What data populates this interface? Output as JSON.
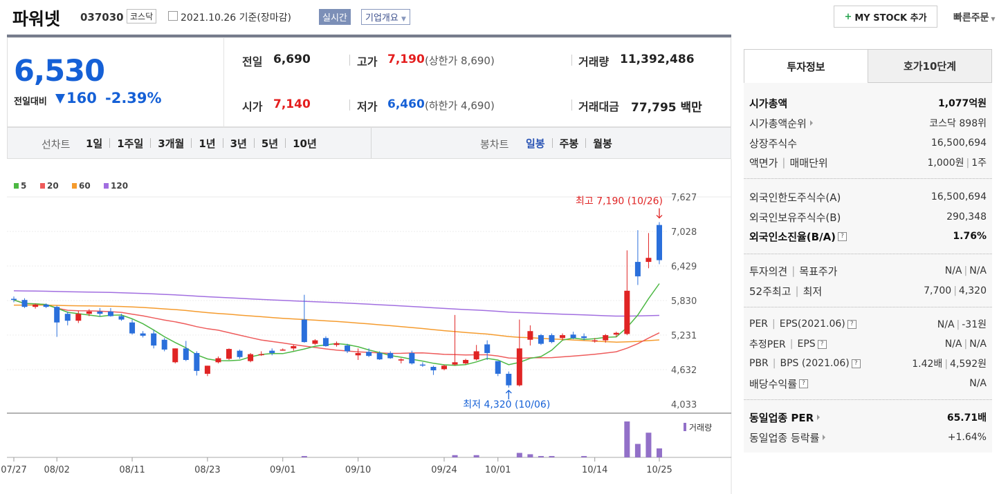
{
  "header": {
    "title": "파워넷",
    "code": "037030",
    "market": "코스닥",
    "date": "2021.10.26 기준(장마감)",
    "realtime": "실시간",
    "overview": "기업개요",
    "mystock": "MY STOCK 추가",
    "quick_order": "빠른주문"
  },
  "quote": {
    "price": "6,530",
    "change_label": "전일대비",
    "change_value": "160",
    "change_pct": "-2.39%",
    "prev_label": "전일",
    "prev": "6,690",
    "high_label": "고가",
    "high": "7,190",
    "upper_limit": "(상한가 8,690)",
    "volume_label": "거래량",
    "volume": "11,392,486",
    "open_label": "시가",
    "open": "7,140",
    "low_label": "저가",
    "low": "6,460",
    "lower_limit": "(하한가 4,690)",
    "amount_label": "거래대금",
    "amount": "77,795 백만"
  },
  "nav": {
    "line_label": "선차트",
    "line_periods": [
      "1일",
      "1주일",
      "3개월",
      "1년",
      "3년",
      "5년",
      "10년"
    ],
    "candle_label": "봉차트",
    "candle_periods": [
      "일봉",
      "주봉",
      "월봉"
    ]
  },
  "legend": [
    "5",
    "20",
    "60",
    "120"
  ],
  "chart_data": {
    "type": "candlestick",
    "y_ticks": [
      "7,627",
      "7,028",
      "6,429",
      "5,830",
      "5,231",
      "4,632",
      "4,033"
    ],
    "x_ticks": [
      "07/27",
      "08/02",
      "08/11",
      "08/23",
      "09/01",
      "09/10",
      "09/24",
      "10/01",
      "10/14",
      "10/25"
    ],
    "high_annotation": "최고 7,190 (10/26)",
    "low_annotation": "최저 4,320 (10/06)",
    "volume_label": "거래량",
    "colors": {
      "up": "#e02424",
      "down": "#2a6fdb",
      "ma5": "#4cb843",
      "ma20": "#ee5b5b",
      "ma60": "#f59b2d",
      "ma120": "#a16ee0"
    },
    "candles": [
      {
        "o": 5860,
        "h": 5900,
        "l": 5800,
        "c": 5840
      },
      {
        "o": 5840,
        "h": 5870,
        "l": 5700,
        "c": 5720
      },
      {
        "o": 5720,
        "h": 5780,
        "l": 5690,
        "c": 5760
      },
      {
        "o": 5760,
        "h": 5780,
        "l": 5700,
        "c": 5720
      },
      {
        "o": 5720,
        "h": 5740,
        "l": 5200,
        "c": 5450
      },
      {
        "o": 5600,
        "h": 5640,
        "l": 5400,
        "c": 5480
      },
      {
        "o": 5480,
        "h": 5650,
        "l": 5440,
        "c": 5600
      },
      {
        "o": 5600,
        "h": 5680,
        "l": 5560,
        "c": 5640
      },
      {
        "o": 5640,
        "h": 5700,
        "l": 5550,
        "c": 5600
      },
      {
        "o": 5640,
        "h": 5700,
        "l": 5550,
        "c": 5560
      },
      {
        "o": 5560,
        "h": 5600,
        "l": 5480,
        "c": 5500
      },
      {
        "o": 5450,
        "h": 5500,
        "l": 5240,
        "c": 5260
      },
      {
        "o": 5260,
        "h": 5300,
        "l": 5190,
        "c": 5220
      },
      {
        "o": 5260,
        "h": 5320,
        "l": 5000,
        "c": 5050
      },
      {
        "o": 5150,
        "h": 5180,
        "l": 4950,
        "c": 4980
      },
      {
        "o": 4760,
        "h": 5000,
        "l": 4740,
        "c": 5000
      },
      {
        "o": 5000,
        "h": 5130,
        "l": 4780,
        "c": 4800
      },
      {
        "o": 4920,
        "h": 4950,
        "l": 4530,
        "c": 4610
      },
      {
        "o": 4560,
        "h": 4700,
        "l": 4520,
        "c": 4700
      },
      {
        "o": 4760,
        "h": 4860,
        "l": 4740,
        "c": 4830
      },
      {
        "o": 4820,
        "h": 5000,
        "l": 4800,
        "c": 4990
      },
      {
        "o": 4960,
        "h": 4980,
        "l": 4820,
        "c": 4850
      },
      {
        "o": 4780,
        "h": 4920,
        "l": 4760,
        "c": 4900
      },
      {
        "o": 4900,
        "h": 4950,
        "l": 4870,
        "c": 4900
      },
      {
        "o": 4960,
        "h": 5000,
        "l": 4880,
        "c": 4920
      },
      {
        "o": 4970,
        "h": 5000,
        "l": 4960,
        "c": 4980
      },
      {
        "o": 5000,
        "h": 5060,
        "l": 4960,
        "c": 5040
      },
      {
        "o": 5500,
        "h": 5930,
        "l": 5100,
        "c": 5110
      },
      {
        "o": 5080,
        "h": 5160,
        "l": 5060,
        "c": 5140
      },
      {
        "o": 5180,
        "h": 5210,
        "l": 5030,
        "c": 5040
      },
      {
        "o": 5060,
        "h": 5120,
        "l": 5030,
        "c": 5090
      },
      {
        "o": 5050,
        "h": 5080,
        "l": 4920,
        "c": 4950
      },
      {
        "o": 4880,
        "h": 5000,
        "l": 4800,
        "c": 4920
      },
      {
        "o": 4940,
        "h": 5000,
        "l": 4850,
        "c": 4870
      },
      {
        "o": 4920,
        "h": 4950,
        "l": 4800,
        "c": 4810
      },
      {
        "o": 4920,
        "h": 4950,
        "l": 4820,
        "c": 4830
      },
      {
        "o": 4790,
        "h": 4830,
        "l": 4740,
        "c": 4810
      },
      {
        "o": 4920,
        "h": 4960,
        "l": 4720,
        "c": 4740
      },
      {
        "o": 4720,
        "h": 4760,
        "l": 4680,
        "c": 4710
      },
      {
        "o": 4680,
        "h": 4700,
        "l": 4540,
        "c": 4620
      },
      {
        "o": 4640,
        "h": 4720,
        "l": 4620,
        "c": 4700
      },
      {
        "o": 4720,
        "h": 5580,
        "l": 4700,
        "c": 4760
      },
      {
        "o": 4740,
        "h": 4820,
        "l": 4720,
        "c": 4800
      },
      {
        "o": 4810,
        "h": 5060,
        "l": 4790,
        "c": 4950
      },
      {
        "o": 5070,
        "h": 5140,
        "l": 4800,
        "c": 4920
      },
      {
        "o": 4780,
        "h": 4780,
        "l": 4520,
        "c": 4560
      },
      {
        "o": 4560,
        "h": 4600,
        "l": 4320,
        "c": 4360
      },
      {
        "o": 4360,
        "h": 5500,
        "l": 4340,
        "c": 5000
      },
      {
        "o": 5150,
        "h": 5400,
        "l": 5050,
        "c": 5300
      },
      {
        "o": 5230,
        "h": 5250,
        "l": 5060,
        "c": 5080
      },
      {
        "o": 5230,
        "h": 5260,
        "l": 5090,
        "c": 5110
      },
      {
        "o": 5180,
        "h": 5260,
        "l": 5140,
        "c": 5230
      },
      {
        "o": 5240,
        "h": 5290,
        "l": 5160,
        "c": 5180
      },
      {
        "o": 5210,
        "h": 5260,
        "l": 5140,
        "c": 5180
      },
      {
        "o": 5130,
        "h": 5180,
        "l": 5100,
        "c": 5140
      },
      {
        "o": 5140,
        "h": 5250,
        "l": 5100,
        "c": 5230
      },
      {
        "o": 5240,
        "h": 5290,
        "l": 5200,
        "c": 5270
      },
      {
        "o": 5250,
        "h": 6700,
        "l": 5230,
        "c": 6000
      },
      {
        "o": 6500,
        "h": 7050,
        "l": 6100,
        "c": 6250
      },
      {
        "o": 6500,
        "h": 7000,
        "l": 6390,
        "c": 6570
      },
      {
        "o": 7140,
        "h": 7190,
        "l": 6460,
        "c": 6530
      }
    ],
    "volumes": [
      0,
      0,
      0,
      0,
      0,
      0,
      0,
      0,
      0,
      0,
      0,
      0,
      0,
      0,
      0,
      0,
      0,
      0,
      0,
      0,
      0,
      0,
      0,
      0,
      0,
      0,
      0,
      0.03,
      0,
      0,
      0,
      0,
      0,
      0,
      0,
      0,
      0,
      0,
      0,
      0,
      0,
      0.05,
      0,
      0.05,
      0,
      0,
      0,
      0.1,
      0.07,
      0.03,
      0.03,
      0,
      0,
      0.03,
      0,
      0,
      0,
      0.8,
      0.3,
      0.55,
      0.2
    ]
  },
  "panel": {
    "tab_invest": "투자정보",
    "tab_book": "호가10단계",
    "market_cap_label": "시가총액",
    "market_cap": "1,077억원",
    "market_cap_rank_label": "시가총액순위",
    "market_cap_rank": "코스닥 898위",
    "shares_label": "상장주식수",
    "shares": "16,500,694",
    "par_label": "액면가",
    "unit_label": "매매단위",
    "par": "1,000원",
    "unit": "1주",
    "foreign_limit_label": "외국인한도주식수(A)",
    "foreign_limit": "16,500,694",
    "foreign_own_label": "외국인보유주식수(B)",
    "foreign_own": "290,348",
    "foreign_ratio_label": "외국인소진율(B/A)",
    "foreign_ratio": "1.76%",
    "opinion_label": "투자의견",
    "target_label": "목표주가",
    "opinion": "N/A",
    "target": "N/A",
    "w52_high_label": "52주최고",
    "w52_low_label": "최저",
    "w52_high": "7,700",
    "w52_low": "4,320",
    "per_label": "PER",
    "eps_label": "EPS(2021.06)",
    "per": "N/A",
    "eps": "-31원",
    "est_per_label": "추정PER",
    "est_eps_label": "EPS",
    "est_per": "N/A",
    "est_eps": "N/A",
    "pbr_label": "PBR",
    "bps_label": "BPS (2021.06)",
    "pbr": "1.42배",
    "bps": "4,592원",
    "dividend_label": "배당수익률",
    "dividend": "N/A",
    "ind_per_label": "동일업종 PER",
    "ind_per": "65.71배",
    "ind_rate_label": "동일업종 등락률",
    "ind_rate": "+1.64%"
  }
}
